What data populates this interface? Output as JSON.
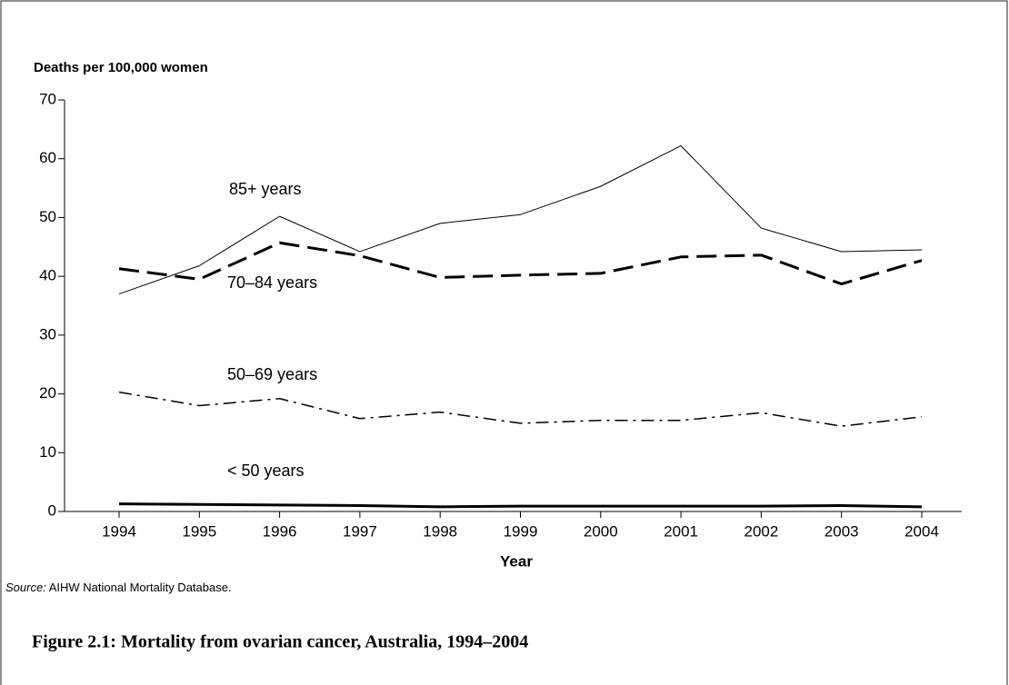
{
  "chart_data": {
    "type": "line",
    "title": "Figure 2.1: Mortality from ovarian cancer, Australia, 1994–2004",
    "y_label": "Deaths per 100,000 women",
    "x_label": "Year",
    "source_label": "Source:",
    "source": "AIHW National Mortality Database.",
    "categories": [
      "1994",
      "1995",
      "1996",
      "1997",
      "1998",
      "1999",
      "2000",
      "2001",
      "2002",
      "2003",
      "2004"
    ],
    "series": [
      {
        "name": "85+ years",
        "color": "#000000",
        "linestyle": "solid",
        "linewidth": 1,
        "values": [
          37,
          41.8,
          50.2,
          44.2,
          49,
          50.5,
          55.3,
          62.2,
          48.2,
          44.2,
          44.5
        ]
      },
      {
        "name": "70–84 years",
        "color": "#000000",
        "linestyle": "dashed",
        "linewidth": 3,
        "values": [
          41.3,
          39.5,
          45.7,
          43.5,
          39.8,
          40.2,
          40.5,
          43.3,
          43.6,
          38.7,
          42.7
        ]
      },
      {
        "name": "50–69 years",
        "color": "#000000",
        "linestyle": "dashdot",
        "linewidth": 1.5,
        "values": [
          20.3,
          18,
          19.2,
          15.8,
          16.9,
          15,
          15.5,
          15.5,
          16.8,
          14.5,
          16.1
        ]
      },
      {
        "name": "< 50 years",
        "color": "#000000",
        "linestyle": "solid",
        "linewidth": 3,
        "values": [
          1.3,
          1.2,
          1.1,
          1.0,
          0.8,
          0.9,
          0.9,
          0.9,
          0.9,
          1.0,
          0.8
        ]
      }
    ],
    "ylim": [
      0,
      70
    ],
    "yticks": [
      0,
      10,
      20,
      30,
      40,
      50,
      60,
      70
    ]
  }
}
